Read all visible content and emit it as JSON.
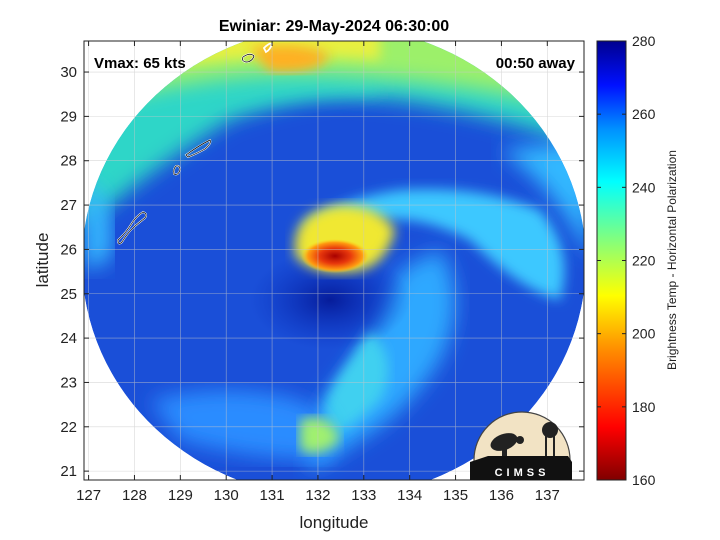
{
  "figure": {
    "title": "Ewiniar: 29-May-2024 06:30:00",
    "vmax_label": "Vmax: 65 kts",
    "time_away_label": "00:50 away",
    "logo_text": "CIMSS"
  },
  "axes": {
    "xlabel": "longitude",
    "ylabel": "latitude",
    "xlim": [
      126.9,
      137.8
    ],
    "ylim": [
      20.8,
      30.7
    ],
    "xticks": [
      127,
      128,
      129,
      130,
      131,
      132,
      133,
      134,
      135,
      136,
      137
    ],
    "yticks": [
      21,
      22,
      23,
      24,
      25,
      26,
      27,
      28,
      29,
      30
    ],
    "grid": true
  },
  "colorbar": {
    "label": "Brightness Temp - Horizontal Polarization",
    "range": [
      160,
      280
    ],
    "ticks": [
      160,
      180,
      200,
      220,
      240,
      260,
      280
    ],
    "colormap": "jet"
  },
  "storm": {
    "name": "Ewiniar",
    "center_lon": 132.2,
    "center_lat": 25.9
  },
  "colors": {
    "background_disk": "#1a4fd8",
    "warm_core": "#e8380c",
    "frame": "#222222",
    "grid": "#c8c8c8"
  }
}
